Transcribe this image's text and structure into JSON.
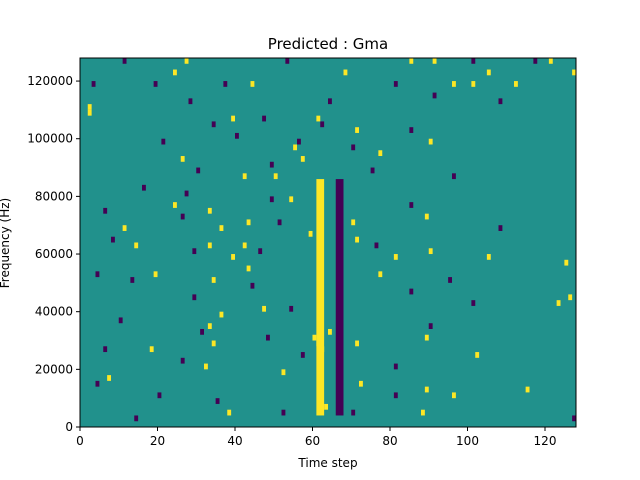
{
  "chart_data": {
    "type": "heatmap",
    "title": "Predicted : Gma",
    "xlabel": "Time step",
    "ylabel": "Frequency (Hz)",
    "xlim": [
      0,
      128
    ],
    "ylim": [
      0,
      128000
    ],
    "xticks": [
      0,
      20,
      40,
      60,
      80,
      100,
      120
    ],
    "xtick_labels": [
      "0",
      "20",
      "40",
      "60",
      "80",
      "100",
      "120"
    ],
    "yticks": [
      0,
      20000,
      40000,
      60000,
      80000,
      100000,
      120000
    ],
    "ytick_labels": [
      "0",
      "20000",
      "40000",
      "60000",
      "80000",
      "100000",
      "120000"
    ],
    "n_time_steps": 128,
    "n_frequency_bins": 64,
    "colormap": "viridis",
    "background_value": 0,
    "value_colors": {
      "-1": "#440154",
      "0": "#21918c",
      "1": "#fde725"
    },
    "dense_band": {
      "time_steps": [
        61,
        62
      ],
      "frequency_range": [
        4000,
        86000
      ],
      "value": 1
    },
    "dark_band": {
      "time_steps": [
        66,
        67
      ],
      "frequency_range": [
        4000,
        86000
      ],
      "value": -1
    },
    "cells_high": [
      [
        27,
        127000
      ],
      [
        85,
        127000
      ],
      [
        91,
        127000
      ],
      [
        121,
        127000
      ],
      [
        24,
        123000
      ],
      [
        68,
        123000
      ],
      [
        105,
        123000
      ],
      [
        127,
        123000
      ],
      [
        44,
        119000
      ],
      [
        96,
        119000
      ],
      [
        101,
        119000
      ],
      [
        112,
        119000
      ],
      [
        2,
        111000
      ],
      [
        2,
        109000
      ],
      [
        39,
        107000
      ],
      [
        61,
        107000
      ],
      [
        71,
        103000
      ],
      [
        90,
        99000
      ],
      [
        55,
        97000
      ],
      [
        77,
        95000
      ],
      [
        26,
        93000
      ],
      [
        57,
        93000
      ],
      [
        42,
        87000
      ],
      [
        50,
        87000
      ],
      [
        54,
        79000
      ],
      [
        24,
        77000
      ],
      [
        33,
        75000
      ],
      [
        43,
        71000
      ],
      [
        70,
        71000
      ],
      [
        89,
        73000
      ],
      [
        11,
        69000
      ],
      [
        36,
        69000
      ],
      [
        59,
        67000
      ],
      [
        71,
        65000
      ],
      [
        14,
        63000
      ],
      [
        33,
        63000
      ],
      [
        42,
        63000
      ],
      [
        90,
        61000
      ],
      [
        39,
        59000
      ],
      [
        81,
        59000
      ],
      [
        105,
        59000
      ],
      [
        125,
        57000
      ],
      [
        19,
        53000
      ],
      [
        34,
        51000
      ],
      [
        43,
        55000
      ],
      [
        77,
        53000
      ],
      [
        126,
        45000
      ],
      [
        123,
        43000
      ],
      [
        36,
        39000
      ],
      [
        47,
        41000
      ],
      [
        33,
        35000
      ],
      [
        64,
        33000
      ],
      [
        71,
        29000
      ],
      [
        34,
        29000
      ],
      [
        89,
        31000
      ],
      [
        102,
        25000
      ],
      [
        18,
        27000
      ],
      [
        32,
        21000
      ],
      [
        52,
        19000
      ],
      [
        72,
        15000
      ],
      [
        89,
        13000
      ],
      [
        96,
        11000
      ],
      [
        7,
        17000
      ],
      [
        38,
        5000
      ],
      [
        63,
        7000
      ],
      [
        88,
        5000
      ],
      [
        115,
        13000
      ],
      [
        60,
        31000
      ],
      [
        61,
        29000
      ],
      [
        62,
        27000
      ]
    ],
    "cells_low": [
      [
        11,
        127000
      ],
      [
        53,
        127000
      ],
      [
        101,
        127000
      ],
      [
        117,
        127000
      ],
      [
        3,
        119000
      ],
      [
        19,
        119000
      ],
      [
        37,
        119000
      ],
      [
        81,
        119000
      ],
      [
        28,
        113000
      ],
      [
        64,
        113000
      ],
      [
        91,
        115000
      ],
      [
        108,
        113000
      ],
      [
        34,
        105000
      ],
      [
        47,
        107000
      ],
      [
        62,
        105000
      ],
      [
        85,
        103000
      ],
      [
        21,
        99000
      ],
      [
        40,
        101000
      ],
      [
        56,
        99000
      ],
      [
        70,
        97000
      ],
      [
        30,
        89000
      ],
      [
        49,
        91000
      ],
      [
        75,
        89000
      ],
      [
        96,
        87000
      ],
      [
        16,
        83000
      ],
      [
        27,
        81000
      ],
      [
        49,
        79000
      ],
      [
        85,
        77000
      ],
      [
        6,
        75000
      ],
      [
        26,
        73000
      ],
      [
        51,
        71000
      ],
      [
        108,
        69000
      ],
      [
        8,
        65000
      ],
      [
        29,
        61000
      ],
      [
        46,
        61000
      ],
      [
        76,
        63000
      ],
      [
        4,
        53000
      ],
      [
        13,
        51000
      ],
      [
        44,
        49000
      ],
      [
        95,
        51000
      ],
      [
        29,
        45000
      ],
      [
        54,
        41000
      ],
      [
        85,
        47000
      ],
      [
        101,
        43000
      ],
      [
        10,
        37000
      ],
      [
        31,
        33000
      ],
      [
        48,
        31000
      ],
      [
        90,
        35000
      ],
      [
        6,
        27000
      ],
      [
        26,
        23000
      ],
      [
        57,
        25000
      ],
      [
        81,
        21000
      ],
      [
        4,
        15000
      ],
      [
        20,
        11000
      ],
      [
        35,
        9000
      ],
      [
        81,
        11000
      ],
      [
        14,
        3000
      ],
      [
        52,
        5000
      ],
      [
        70,
        5000
      ],
      [
        127,
        3000
      ]
    ]
  }
}
